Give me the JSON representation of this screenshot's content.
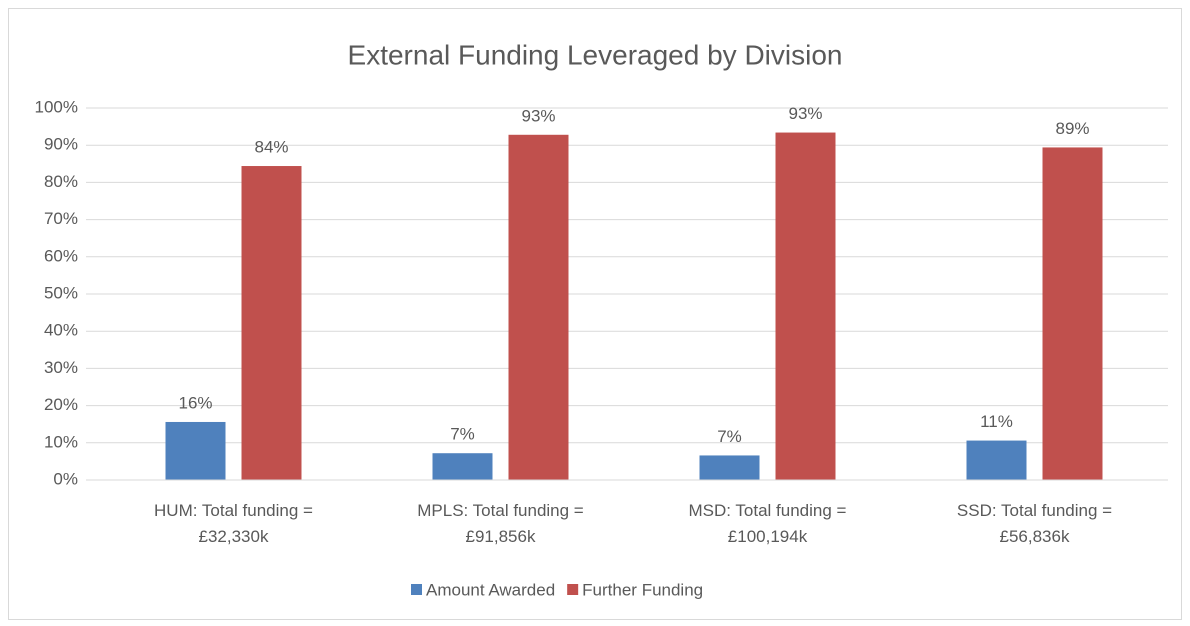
{
  "chart_data": {
    "type": "bar",
    "title": "External Funding Leveraged by Division",
    "categories": [
      "HUM: Total funding =\n£32,330k",
      "MPLS: Total funding =\n£91,856k",
      "MSD: Total funding =\n£100,194k",
      "SSD: Total funding =\n£56,836k"
    ],
    "series": [
      {
        "name": "Amount Awarded",
        "color": "#4f81bd",
        "values": [
          15.6,
          7.2,
          6.6,
          10.6
        ],
        "value_labels": [
          "16%",
          "7%",
          "7%",
          "11%"
        ]
      },
      {
        "name": "Further Funding",
        "color": "#c0504d",
        "values": [
          84.4,
          92.8,
          93.4,
          89.4
        ],
        "value_labels": [
          "84%",
          "93%",
          "93%",
          "89%"
        ]
      }
    ],
    "ylim": [
      0,
      100
    ],
    "yticks": [
      {
        "value": 0,
        "label": "0%"
      },
      {
        "value": 10,
        "label": "10%"
      },
      {
        "value": 20,
        "label": "20%"
      },
      {
        "value": 30,
        "label": "30%"
      },
      {
        "value": 40,
        "label": "40%"
      },
      {
        "value": 50,
        "label": "50%"
      },
      {
        "value": 60,
        "label": "60%"
      },
      {
        "value": 70,
        "label": "70%"
      },
      {
        "value": 80,
        "label": "80%"
      },
      {
        "value": 90,
        "label": "90%"
      },
      {
        "value": 100,
        "label": "100%"
      }
    ],
    "grid": true,
    "legend": "bottom"
  }
}
